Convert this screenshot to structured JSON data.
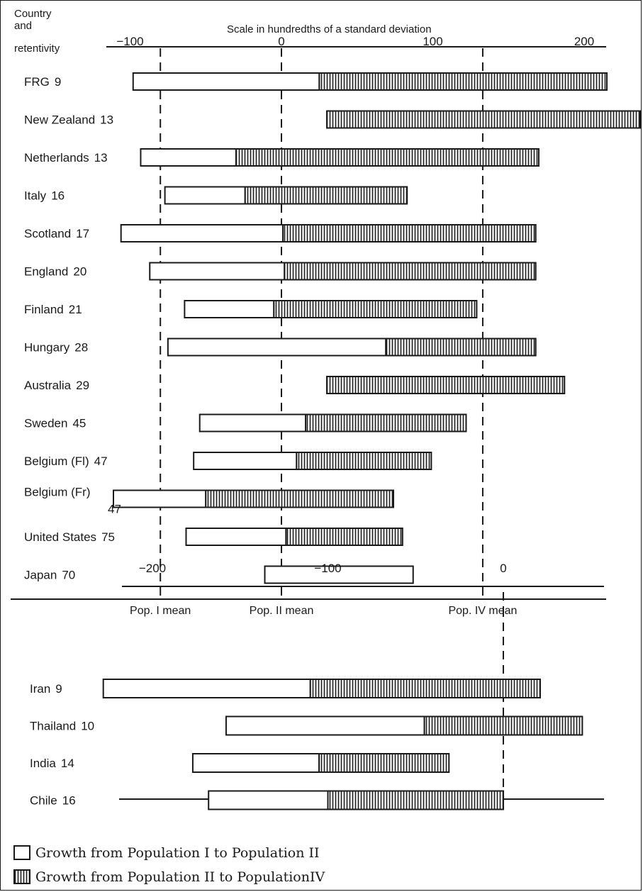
{
  "header": {
    "col_label_line1": "Country",
    "col_label_line2": "and",
    "col_label_line3": "retentivity",
    "scale_title": "Scale in hundredths of a standard deviation"
  },
  "legend": {
    "pop1_to_pop2": "Growth from Population I to Population II",
    "pop2_to_pop4": "Growth from Population II to PopulationIV"
  },
  "colors": {
    "ink": "#1a1a1a",
    "paper": "#ffffff"
  },
  "chart_data": [
    {
      "type": "bar",
      "subtype": "floating-range",
      "title": "Scale in hundredths of a standard deviation",
      "xlim": [
        -105,
        222
      ],
      "xticks": [
        -100,
        0,
        100,
        200
      ],
      "xtick_labels": [
        "−100",
        "0",
        "100",
        "200"
      ],
      "reference_lines": [
        {
          "label": "Pop. I mean",
          "x": -80
        },
        {
          "label": "Pop. II mean",
          "x": 0
        },
        {
          "label": "Pop. IV mean",
          "x": 133
        }
      ],
      "series": [
        {
          "name": "Growth from Population I to Population II",
          "fill": "open"
        },
        {
          "name": "Growth from Population II to PopulationIV",
          "fill": "hatched"
        }
      ],
      "rows": [
        {
          "country": "FRG",
          "retentivity": "9",
          "pop1": -98,
          "pop2": 25,
          "pop4": 215
        },
        {
          "country": "New Zealand",
          "retentivity": "13",
          "pop1": null,
          "pop2": 30,
          "pop4": 237
        },
        {
          "country": "Netherlands",
          "retentivity": "13",
          "pop1": -93,
          "pop2": -30,
          "pop4": 170
        },
        {
          "country": "Italy",
          "retentivity": "16",
          "pop1": -77,
          "pop2": -24,
          "pop4": 83
        },
        {
          "country": "Scotland",
          "retentivity": "17",
          "pop1": -106,
          "pop2": 1,
          "pop4": 168
        },
        {
          "country": "England",
          "retentivity": "20",
          "pop1": -87,
          "pop2": 2,
          "pop4": 168
        },
        {
          "country": "Finland",
          "retentivity": "21",
          "pop1": -64,
          "pop2": -5,
          "pop4": 129
        },
        {
          "country": "Hungary",
          "retentivity": "28",
          "pop1": -75,
          "pop2": 69,
          "pop4": 168
        },
        {
          "country": "Australia",
          "retentivity": "29",
          "pop1": null,
          "pop2": 30,
          "pop4": 187
        },
        {
          "country": "Sweden",
          "retentivity": "45",
          "pop1": -54,
          "pop2": 16,
          "pop4": 122
        },
        {
          "country": "Belgium (Fl)",
          "retentivity": "47",
          "pop1": -58,
          "pop2": 10,
          "pop4": 99
        },
        {
          "country": "Belgium (Fr)",
          "retentivity": "47",
          "pop1": -111,
          "pop2": -50,
          "pop4": 74
        },
        {
          "country": "United States",
          "retentivity": "75",
          "pop1": -63,
          "pop2": 3,
          "pop4": 80
        },
        {
          "country": "Japan",
          "retentivity": "70",
          "pop1": -11,
          "pop2": 87,
          "pop4": null
        }
      ]
    },
    {
      "type": "bar",
      "subtype": "floating-range",
      "xlim": [
        -250,
        65
      ],
      "xticks": [
        -200,
        -100,
        0
      ],
      "xtick_labels": [
        "−200",
        "−100",
        "0"
      ],
      "reference_lines": [
        {
          "x": 0
        }
      ],
      "series": [
        {
          "name": "Growth from Population I to Population II",
          "fill": "open"
        },
        {
          "name": "Growth from Population II to PopulationIV",
          "fill": "hatched"
        }
      ],
      "rows": [
        {
          "country": "Iran",
          "retentivity": "9",
          "pop1": -228,
          "pop2": -110,
          "pop4": 21
        },
        {
          "country": "Thailand",
          "retentivity": "10",
          "pop1": -158,
          "pop2": -45,
          "pop4": 45
        },
        {
          "country": "India",
          "retentivity": "14",
          "pop1": -177,
          "pop2": -105,
          "pop4": -31
        },
        {
          "country": "Chile",
          "retentivity": "16",
          "pop1": -168,
          "pop2": -100,
          "pop4": 0
        }
      ]
    }
  ]
}
